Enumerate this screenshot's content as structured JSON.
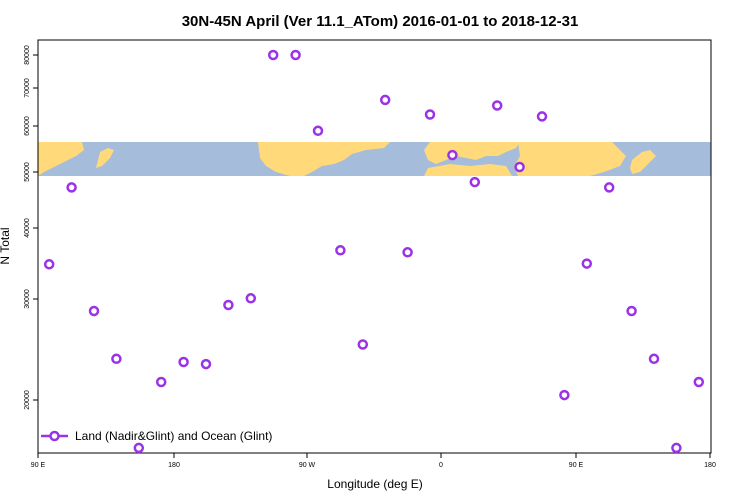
{
  "chart_data": {
    "type": "scatter",
    "title": "30N-45N April (Ver 11.1_ATom)   2016-01-01 to 2018-12-31",
    "xlabel": "Longitude (deg E)",
    "ylabel": "N Total",
    "x_ticks": [
      "90 E",
      "180",
      "90 W",
      "0",
      "90 E",
      "180"
    ],
    "y_ticks": [
      "20000",
      "30000",
      "40000",
      "50000",
      "60000",
      "70000",
      "80000"
    ],
    "y_scale": "log",
    "ylim": [
      16000,
      85000
    ],
    "legend": {
      "placement": "bottom-left",
      "entries": [
        "Land (Nadir&Glint) and Ocean (Glint)"
      ]
    },
    "series": [
      {
        "name": "Land (Nadir&Glint) and Ocean (Glint)",
        "color": "#9a32e6",
        "points": [
          {
            "x": 97.5,
            "y": 34500
          },
          {
            "x": 112.5,
            "y": 47000
          },
          {
            "x": 127.5,
            "y": 28600
          },
          {
            "x": 142.5,
            "y": 23600
          },
          {
            "x": 157.5,
            "y": 16500
          },
          {
            "x": 172.5,
            "y": 21500
          },
          {
            "x": 187.5,
            "y": 23300
          },
          {
            "x": 202.5,
            "y": 23100
          },
          {
            "x": 217.5,
            "y": 29300
          },
          {
            "x": 232.5,
            "y": 30100
          },
          {
            "x": 247.5,
            "y": 80000
          },
          {
            "x": 262.5,
            "y": 80000
          },
          {
            "x": 277.5,
            "y": 59000
          },
          {
            "x": 292.5,
            "y": 36500
          },
          {
            "x": 307.5,
            "y": 25000
          },
          {
            "x": 322.5,
            "y": 66800
          },
          {
            "x": 337.5,
            "y": 36200
          },
          {
            "x": 352.5,
            "y": 63000
          },
          {
            "x": 367.5,
            "y": 53500
          },
          {
            "x": 382.5,
            "y": 48000
          },
          {
            "x": 397.5,
            "y": 65300
          },
          {
            "x": 412.5,
            "y": 51000
          },
          {
            "x": 427.5,
            "y": 62500
          },
          {
            "x": 442.5,
            "y": 20400
          },
          {
            "x": 457.5,
            "y": 34600
          },
          {
            "x": 472.5,
            "y": 47000
          },
          {
            "x": 487.5,
            "y": 28600
          },
          {
            "x": 502.5,
            "y": 23600
          },
          {
            "x": 517.5,
            "y": 16500
          },
          {
            "x": 532.5,
            "y": 21500
          }
        ]
      }
    ]
  }
}
